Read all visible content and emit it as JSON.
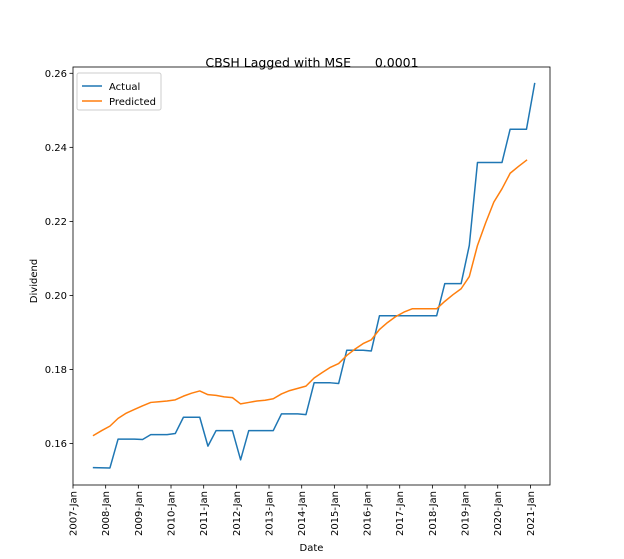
{
  "chart_data": {
    "type": "line",
    "title": "CBSH Lagged with MSE      0.0001",
    "xlabel": "Date",
    "ylabel": "Dividend",
    "x_ticks": [
      "2007-Jan",
      "2008-Jan",
      "2009-Jan",
      "2010-Jan",
      "2011-Jan",
      "2012-Jan",
      "2013-Jan",
      "2014-Jan",
      "2015-Jan",
      "2016-Jan",
      "2017-Jan",
      "2018-Jan",
      "2019-Jan",
      "2020-Jan",
      "2021-Jan"
    ],
    "y_ticks": [
      "0.16",
      "0.18",
      "0.20",
      "0.22",
      "0.24",
      "0.26"
    ],
    "xlim": [
      2007.0,
      2021.6
    ],
    "ylim": [
      0.1488,
      0.2617
    ],
    "grid": false,
    "legend_position": "top-left",
    "series": [
      {
        "name": "Actual",
        "color": "#1f77b4",
        "points": [
          [
            2007.63,
            0.1535
          ],
          [
            2008.13,
            0.1534
          ],
          [
            2008.38,
            0.1612
          ],
          [
            2008.63,
            0.1612
          ],
          [
            2008.88,
            0.1612
          ],
          [
            2009.13,
            0.1611
          ],
          [
            2009.38,
            0.1624
          ],
          [
            2009.63,
            0.1624
          ],
          [
            2009.88,
            0.1624
          ],
          [
            2010.13,
            0.1627
          ],
          [
            2010.38,
            0.1671
          ],
          [
            2010.63,
            0.1671
          ],
          [
            2010.88,
            0.1671
          ],
          [
            2011.13,
            0.1593
          ],
          [
            2011.38,
            0.1635
          ],
          [
            2011.63,
            0.1635
          ],
          [
            2011.88,
            0.1635
          ],
          [
            2012.13,
            0.1556
          ],
          [
            2012.38,
            0.1635
          ],
          [
            2012.63,
            0.1635
          ],
          [
            2012.88,
            0.1635
          ],
          [
            2013.13,
            0.1635
          ],
          [
            2013.38,
            0.168
          ],
          [
            2013.63,
            0.168
          ],
          [
            2013.88,
            0.168
          ],
          [
            2014.13,
            0.1678
          ],
          [
            2014.38,
            0.1764
          ],
          [
            2014.63,
            0.1764
          ],
          [
            2014.88,
            0.1764
          ],
          [
            2015.13,
            0.1762
          ],
          [
            2015.38,
            0.1852
          ],
          [
            2015.63,
            0.1852
          ],
          [
            2015.88,
            0.1852
          ],
          [
            2016.13,
            0.185
          ],
          [
            2016.38,
            0.1945
          ],
          [
            2016.63,
            0.1945
          ],
          [
            2016.88,
            0.1945
          ],
          [
            2017.13,
            0.1945
          ],
          [
            2017.38,
            0.1945
          ],
          [
            2017.63,
            0.1945
          ],
          [
            2017.88,
            0.1945
          ],
          [
            2018.13,
            0.1945
          ],
          [
            2018.38,
            0.2032
          ],
          [
            2018.63,
            0.2032
          ],
          [
            2018.88,
            0.2032
          ],
          [
            2019.13,
            0.2135
          ],
          [
            2019.38,
            0.2359
          ],
          [
            2019.63,
            0.2359
          ],
          [
            2019.88,
            0.2359
          ],
          [
            2020.13,
            0.2359
          ],
          [
            2020.38,
            0.2449
          ],
          [
            2020.63,
            0.2449
          ],
          [
            2020.88,
            0.2449
          ],
          [
            2021.13,
            0.2572
          ]
        ]
      },
      {
        "name": "Predicted",
        "color": "#ff7f0e",
        "points": [
          [
            2007.63,
            0.1622
          ],
          [
            2007.88,
            0.1635
          ],
          [
            2008.13,
            0.1647
          ],
          [
            2008.38,
            0.1668
          ],
          [
            2008.63,
            0.1682
          ],
          [
            2008.88,
            0.1692
          ],
          [
            2009.13,
            0.1702
          ],
          [
            2009.38,
            0.1711
          ],
          [
            2009.63,
            0.1713
          ],
          [
            2009.88,
            0.1715
          ],
          [
            2010.13,
            0.1718
          ],
          [
            2010.38,
            0.1728
          ],
          [
            2010.63,
            0.1736
          ],
          [
            2010.88,
            0.1742
          ],
          [
            2011.13,
            0.1732
          ],
          [
            2011.38,
            0.173
          ],
          [
            2011.63,
            0.1726
          ],
          [
            2011.88,
            0.1724
          ],
          [
            2012.13,
            0.1707
          ],
          [
            2012.38,
            0.1711
          ],
          [
            2012.63,
            0.1715
          ],
          [
            2012.88,
            0.1717
          ],
          [
            2013.13,
            0.1721
          ],
          [
            2013.38,
            0.1734
          ],
          [
            2013.63,
            0.1743
          ],
          [
            2013.88,
            0.1749
          ],
          [
            2014.13,
            0.1755
          ],
          [
            2014.38,
            0.1777
          ],
          [
            2014.63,
            0.1792
          ],
          [
            2014.88,
            0.1806
          ],
          [
            2015.13,
            0.1816
          ],
          [
            2015.38,
            0.1838
          ],
          [
            2015.63,
            0.1855
          ],
          [
            2015.88,
            0.187
          ],
          [
            2016.13,
            0.188
          ],
          [
            2016.38,
            0.1908
          ],
          [
            2016.63,
            0.1927
          ],
          [
            2016.88,
            0.1943
          ],
          [
            2017.13,
            0.1955
          ],
          [
            2017.38,
            0.1964
          ],
          [
            2017.63,
            0.1964
          ],
          [
            2017.88,
            0.1964
          ],
          [
            2018.13,
            0.1964
          ],
          [
            2018.38,
            0.1984
          ],
          [
            2018.63,
            0.2002
          ],
          [
            2018.88,
            0.2018
          ],
          [
            2019.13,
            0.2051
          ],
          [
            2019.38,
            0.2135
          ],
          [
            2019.63,
            0.2196
          ],
          [
            2019.88,
            0.2252
          ],
          [
            2020.13,
            0.2288
          ],
          [
            2020.38,
            0.233
          ],
          [
            2020.63,
            0.2348
          ],
          [
            2020.88,
            0.2365
          ]
        ]
      }
    ]
  }
}
